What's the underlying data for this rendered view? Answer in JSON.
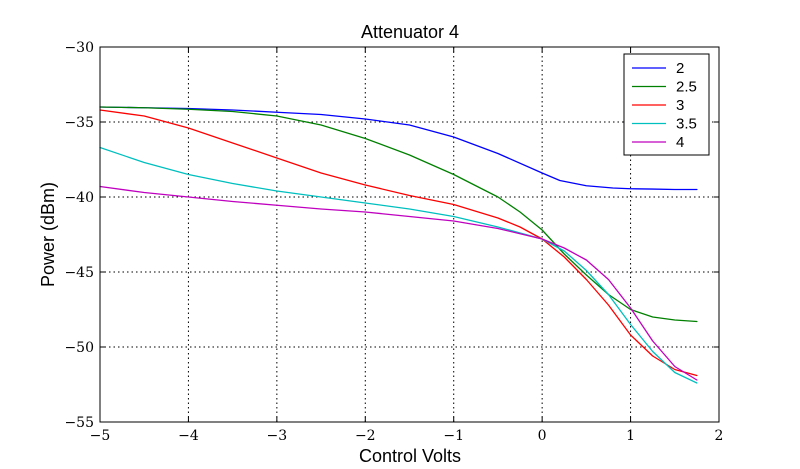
{
  "chart_data": {
    "type": "line",
    "title": "Attenuator 4",
    "xlabel": "Control Volts",
    "ylabel": "Power (dBm)",
    "xlim": [
      -5,
      2
    ],
    "ylim": [
      -55,
      -30
    ],
    "xticks": [
      -5,
      -4,
      -3,
      -2,
      -1,
      0,
      1,
      2
    ],
    "yticks": [
      -55,
      -50,
      -45,
      -40,
      -35,
      -30
    ],
    "xtick_labels": [
      "−5",
      "−4",
      "−3",
      "−2",
      "−1",
      "0",
      "1",
      "2"
    ],
    "ytick_labels": [
      "−55",
      "−50",
      "−45",
      "−40",
      "−35",
      "−30"
    ],
    "grid": true,
    "legend_position": "top-right",
    "series": [
      {
        "name": "2",
        "color": "#0000ff",
        "points": [
          [
            -5,
            -34.0
          ],
          [
            -4.5,
            -34.05
          ],
          [
            -4,
            -34.1
          ],
          [
            -3.5,
            -34.2
          ],
          [
            -3,
            -34.35
          ],
          [
            -2.5,
            -34.5
          ],
          [
            -2,
            -34.8
          ],
          [
            -1.5,
            -35.2
          ],
          [
            -1,
            -36.0
          ],
          [
            -0.5,
            -37.1
          ],
          [
            0,
            -38.4
          ],
          [
            0.2,
            -38.9
          ],
          [
            0.5,
            -39.25
          ],
          [
            0.8,
            -39.4
          ],
          [
            1.0,
            -39.45
          ],
          [
            1.25,
            -39.47
          ],
          [
            1.5,
            -39.5
          ],
          [
            1.75,
            -39.5
          ]
        ]
      },
      {
        "name": "2.5",
        "color": "#008000",
        "points": [
          [
            -5,
            -34.0
          ],
          [
            -4.5,
            -34.05
          ],
          [
            -4,
            -34.15
          ],
          [
            -3.5,
            -34.3
          ],
          [
            -3,
            -34.6
          ],
          [
            -2.5,
            -35.2
          ],
          [
            -2,
            -36.1
          ],
          [
            -1.5,
            -37.2
          ],
          [
            -1,
            -38.5
          ],
          [
            -0.5,
            -40.0
          ],
          [
            -0.25,
            -41.0
          ],
          [
            0,
            -42.2
          ],
          [
            0.25,
            -43.8
          ],
          [
            0.5,
            -45.2
          ],
          [
            0.75,
            -46.5
          ],
          [
            1.0,
            -47.5
          ],
          [
            1.25,
            -48.0
          ],
          [
            1.5,
            -48.2
          ],
          [
            1.75,
            -48.3
          ]
        ]
      },
      {
        "name": "3",
        "color": "#ff0000",
        "points": [
          [
            -5,
            -34.2
          ],
          [
            -4.5,
            -34.6
          ],
          [
            -4,
            -35.4
          ],
          [
            -3.5,
            -36.4
          ],
          [
            -3,
            -37.4
          ],
          [
            -2.5,
            -38.4
          ],
          [
            -2,
            -39.2
          ],
          [
            -1.5,
            -39.9
          ],
          [
            -1,
            -40.5
          ],
          [
            -0.5,
            -41.4
          ],
          [
            -0.25,
            -42.0
          ],
          [
            0,
            -42.8
          ],
          [
            0.25,
            -44.0
          ],
          [
            0.5,
            -45.5
          ],
          [
            0.75,
            -47.2
          ],
          [
            1.0,
            -49.2
          ],
          [
            1.25,
            -50.6
          ],
          [
            1.5,
            -51.5
          ],
          [
            1.75,
            -51.9
          ]
        ]
      },
      {
        "name": "3.5",
        "color": "#00bfbf",
        "points": [
          [
            -5,
            -36.7
          ],
          [
            -4.5,
            -37.7
          ],
          [
            -4,
            -38.5
          ],
          [
            -3.5,
            -39.1
          ],
          [
            -3,
            -39.6
          ],
          [
            -2.5,
            -40.0
          ],
          [
            -2,
            -40.4
          ],
          [
            -1.5,
            -40.8
          ],
          [
            -1,
            -41.3
          ],
          [
            -0.5,
            -42.0
          ],
          [
            0,
            -42.8
          ],
          [
            0.25,
            -43.6
          ],
          [
            0.5,
            -44.9
          ],
          [
            0.75,
            -46.5
          ],
          [
            1.0,
            -48.5
          ],
          [
            1.25,
            -50.3
          ],
          [
            1.5,
            -51.7
          ],
          [
            1.75,
            -52.4
          ]
        ]
      },
      {
        "name": "4",
        "color": "#bf00bf",
        "points": [
          [
            -5,
            -39.3
          ],
          [
            -4.5,
            -39.7
          ],
          [
            -4,
            -40.0
          ],
          [
            -3.5,
            -40.3
          ],
          [
            -3,
            -40.55
          ],
          [
            -2.5,
            -40.8
          ],
          [
            -2,
            -41.0
          ],
          [
            -1.5,
            -41.3
          ],
          [
            -1,
            -41.6
          ],
          [
            -0.5,
            -42.1
          ],
          [
            0,
            -42.8
          ],
          [
            0.25,
            -43.4
          ],
          [
            0.5,
            -44.2
          ],
          [
            0.75,
            -45.5
          ],
          [
            1.0,
            -47.4
          ],
          [
            1.25,
            -49.6
          ],
          [
            1.5,
            -51.3
          ],
          [
            1.75,
            -52.2
          ]
        ]
      }
    ]
  }
}
